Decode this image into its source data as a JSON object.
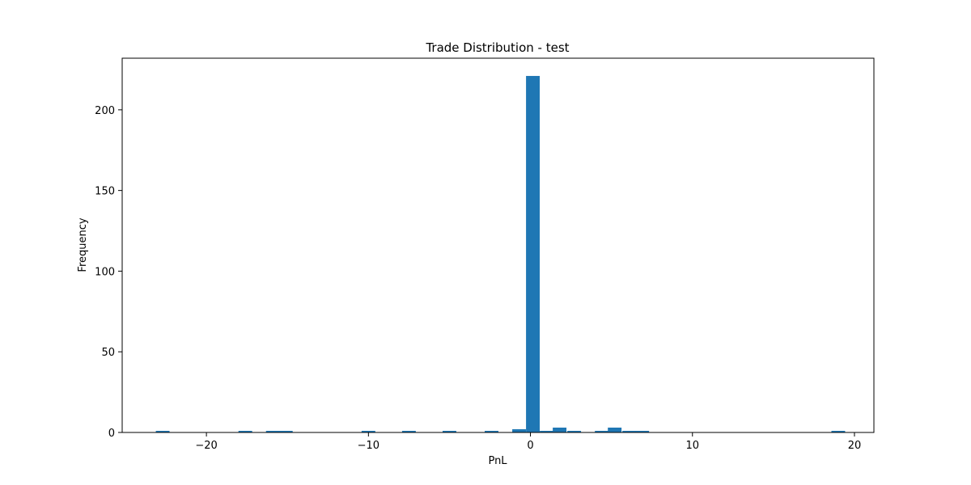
{
  "chart_data": {
    "type": "bar",
    "title": "Trade Distribution - test",
    "xlabel": "PnL",
    "ylabel": "Frequency",
    "xlim": [
      -25.2,
      21.2
    ],
    "ylim": [
      0,
      232
    ],
    "xticks": [
      -20,
      -10,
      0,
      10,
      20
    ],
    "xtick_labels": [
      "−20",
      "−10",
      "0",
      "10",
      "20"
    ],
    "yticks": [
      0,
      50,
      100,
      150,
      200
    ],
    "ytick_labels": [
      "0",
      "50",
      "100",
      "150",
      "200"
    ],
    "grid": false,
    "bar_color": "#1f77b4",
    "bin_width": 0.845,
    "series": [
      {
        "x": [
          -22.7,
          -17.6,
          -15.9,
          -15.1,
          -10.0,
          -7.5,
          -5.0,
          -2.4,
          -0.7,
          0.15,
          1.0,
          1.8,
          2.7,
          4.4,
          5.2,
          6.1,
          6.9,
          19.0
        ],
        "values": [
          1,
          1,
          1,
          1,
          1,
          1,
          1,
          1,
          2,
          221,
          1,
          3,
          1,
          1,
          3,
          1,
          1,
          1
        ]
      }
    ]
  }
}
